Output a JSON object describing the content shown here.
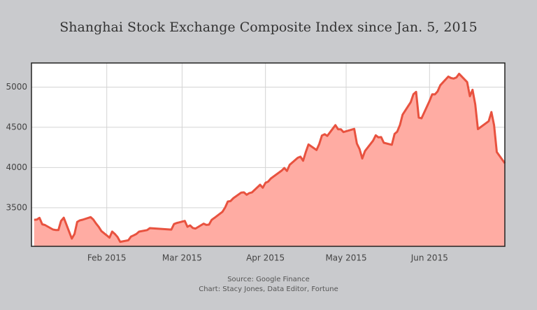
{
  "chart_data": {
    "type": "area",
    "title": "Shanghai Stock Exchange Composite Index since Jan. 5, 2015",
    "source": "Source: Google Finance",
    "credit": "Chart: Stacy Jones, Data Editor, Fortune",
    "x": [
      0,
      1,
      2,
      3,
      4,
      7,
      8,
      9,
      10,
      11,
      14,
      15,
      16,
      17,
      18,
      21,
      22,
      23,
      24,
      25,
      28,
      29,
      30,
      31,
      32,
      35,
      36,
      37,
      38,
      39,
      42,
      43,
      51,
      52,
      53,
      56,
      57,
      58,
      59,
      60,
      63,
      64,
      65,
      66,
      67,
      70,
      71,
      72,
      73,
      74,
      77,
      78,
      79,
      80,
      81,
      84,
      85,
      86,
      87,
      88,
      92,
      93,
      94,
      95,
      98,
      99,
      100,
      101,
      102,
      105,
      106,
      107,
      108,
      109,
      112,
      113,
      114,
      115,
      119,
      120,
      121,
      122,
      123,
      126,
      127,
      128,
      129,
      130,
      133,
      134,
      135,
      136,
      137,
      140,
      141,
      142,
      143,
      144,
      147,
      148,
      149,
      150,
      151,
      154,
      155,
      156,
      157,
      158,
      161,
      162,
      163,
      164,
      165,
      169,
      170,
      171,
      172,
      175
    ],
    "values": [
      3350,
      3352,
      3374,
      3294,
      3285,
      3229,
      3223,
      3222,
      3336,
      3376,
      3116,
      3173,
      3323,
      3343,
      3351,
      3383,
      3352,
      3305,
      3262,
      3210,
      3128,
      3204,
      3175,
      3136,
      3076,
      3095,
      3141,
      3157,
      3173,
      3203,
      3222,
      3246,
      3228,
      3298,
      3310,
      3336,
      3263,
      3280,
      3248,
      3241,
      3302,
      3286,
      3290,
      3349,
      3373,
      3449,
      3503,
      3577,
      3582,
      3617,
      3688,
      3691,
      3661,
      3682,
      3691,
      3786,
      3748,
      3810,
      3825,
      3863,
      3961,
      3994,
      3957,
      4034,
      4121,
      4135,
      4084,
      4194,
      4287,
      4217,
      4293,
      4398,
      4414,
      4393,
      4527,
      4476,
      4476,
      4441,
      4480,
      4298,
      4229,
      4112,
      4205,
      4333,
      4401,
      4375,
      4378,
      4308,
      4283,
      4418,
      4446,
      4529,
      4658,
      4813,
      4910,
      4941,
      4620,
      4612,
      4828,
      4910,
      4909,
      4947,
      5023,
      5131,
      5113,
      5106,
      5121,
      5166,
      5062,
      4887,
      4967,
      4785,
      4478,
      4576,
      4690,
      4527,
      4192,
      4053
    ],
    "color": "#e8523f",
    "fill": "#ffaca3",
    "xlim": [
      -1,
      175
    ],
    "xticks": [
      {
        "value": 27,
        "label": "Feb 2015"
      },
      {
        "value": 55,
        "label": "Mar 2015"
      },
      {
        "value": 86,
        "label": "Apr 2015"
      },
      {
        "value": 116,
        "label": "May 2015"
      },
      {
        "value": 147,
        "label": "Jun 2015"
      }
    ],
    "ylim": [
      3020,
      5300
    ],
    "yticks": [
      3500,
      4000,
      4500,
      5000
    ],
    "grid": true
  }
}
